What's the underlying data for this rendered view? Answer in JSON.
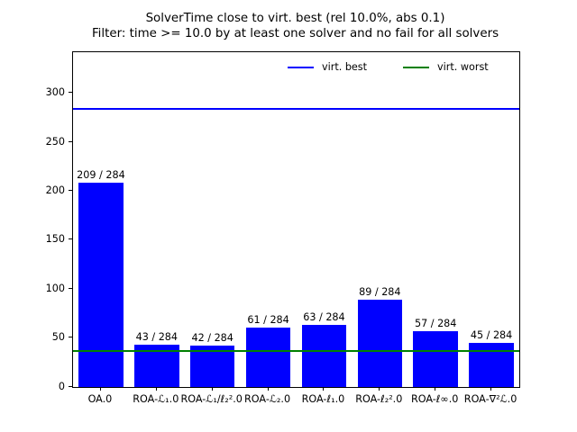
{
  "figure": {
    "title_line1": "SolverTime close to virt. best (rel 10.0%, abs 0.1)",
    "title_line2": "Filter: time >= 10.0 by at least one solver and no fail for all solvers"
  },
  "legend": {
    "items": [
      {
        "label": "virt. best",
        "color": "#0000ff"
      },
      {
        "label": "virt. worst",
        "color": "#008000"
      }
    ],
    "position": "upper center-right, horizontal"
  },
  "chart_data": {
    "type": "bar",
    "title": "SolverTime close to virt. best (rel 10.0%, abs 0.1)",
    "subtitle": "Filter: time >= 10.0 by at least one solver and no fail for all solvers",
    "categories": [
      "OA.0",
      "ROA-ℒ₁.0",
      "ROA-ℒ₁/ℓ₂².0",
      "ROA-ℒ₂.0",
      "ROA-ℓ₁.0",
      "ROA-ℓ₂².0",
      "ROA-ℓ∞.0",
      "ROA-∇²ℒ.0"
    ],
    "values": [
      209,
      43,
      42,
      61,
      63,
      89,
      57,
      45
    ],
    "bar_labels": [
      "209 / 284",
      "43 / 284",
      "42 / 284",
      "61 / 284",
      "63 / 284",
      "89 / 284",
      "57 / 284",
      "45 / 284"
    ],
    "total_instances": 284,
    "bar_color": "#0000ff",
    "xlabel": "",
    "ylabel": "",
    "ylim": [
      0,
      342
    ],
    "yticks": [
      0,
      50,
      100,
      150,
      200,
      250,
      300
    ],
    "hlines": [
      {
        "name": "virt. best",
        "value": 284,
        "color": "#0000ff"
      },
      {
        "name": "virt. worst",
        "value": 37,
        "color": "#008000"
      }
    ],
    "grid": false
  }
}
